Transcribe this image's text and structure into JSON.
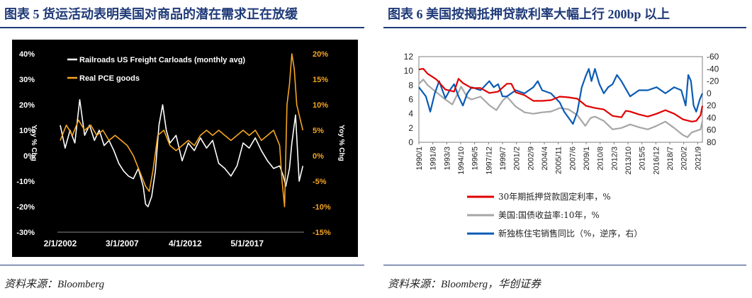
{
  "left": {
    "title": "图表 5   货运活动表明美国对商品的潜在需求正在放缓",
    "source": "资料来源：Bloomberg",
    "chart_data": {
      "type": "line",
      "legend": [
        "Railroads US Freight Carloads (monthly avg)",
        "Real PCE goods"
      ],
      "left_axis": {
        "label": "Yoy % Chg",
        "ticks": [
          "40%",
          "30%",
          "20%",
          "10%",
          "0%",
          "-10%",
          "-20%",
          "-30%"
        ],
        "range": [
          -30,
          40
        ]
      },
      "right_axis": {
        "label": "Yoy % Chg",
        "ticks": [
          "20%",
          "15%",
          "10%",
          "5%",
          "0%",
          "-5%",
          "-10%",
          "-15%"
        ],
        "range": [
          -15,
          20
        ]
      },
      "x_ticks": [
        "2/1/2002",
        "3/1/2007",
        "4/1/2012",
        "5/1/2017"
      ],
      "x_range": [
        2002.0,
        2022.0
      ],
      "series": [
        {
          "name": "Railroads US Freight Carloads (monthly avg)",
          "axis": "left",
          "color": "#ffffff",
          "x": [
            2002.0,
            2002.4,
            2002.8,
            2003.2,
            2003.6,
            2004.0,
            2004.4,
            2004.8,
            2005.2,
            2005.6,
            2006.0,
            2006.4,
            2006.8,
            2007.2,
            2007.6,
            2008.0,
            2008.4,
            2008.8,
            2009.0,
            2009.2,
            2009.5,
            2009.8,
            2010.1,
            2010.4,
            2010.7,
            2011.0,
            2011.5,
            2012.0,
            2012.5,
            2013.0,
            2013.5,
            2014.0,
            2014.5,
            2015.0,
            2015.5,
            2016.0,
            2016.5,
            2017.0,
            2017.5,
            2018.0,
            2018.5,
            2019.0,
            2019.5,
            2020.0,
            2020.3,
            2020.5,
            2020.8,
            2021.0,
            2021.3,
            2021.6,
            2021.9
          ],
          "y": [
            12,
            3,
            10,
            5,
            22,
            8,
            12,
            6,
            10,
            4,
            6,
            2,
            -3,
            -6,
            -8,
            -9,
            -5,
            -12,
            -19,
            -20,
            -16,
            -6,
            12,
            20,
            10,
            5,
            8,
            -2,
            5,
            2,
            7,
            3,
            6,
            -3,
            -5,
            -8,
            -4,
            5,
            3,
            7,
            2,
            -2,
            -5,
            -4,
            -8,
            -12,
            -5,
            5,
            16,
            -10,
            -4
          ]
        },
        {
          "name": "Real PCE goods",
          "axis": "right",
          "color": "#f5a623",
          "x": [
            2002.0,
            2002.5,
            2003.0,
            2003.5,
            2004.0,
            2004.5,
            2005.0,
            2005.5,
            2006.0,
            2006.5,
            2007.0,
            2007.5,
            2008.0,
            2008.5,
            2009.0,
            2009.3,
            2009.6,
            2010.0,
            2010.5,
            2011.0,
            2011.5,
            2012.0,
            2012.5,
            2013.0,
            2013.5,
            2014.0,
            2014.5,
            2015.0,
            2015.5,
            2016.0,
            2016.5,
            2017.0,
            2017.5,
            2018.0,
            2018.5,
            2019.0,
            2019.5,
            2020.0,
            2020.2,
            2020.4,
            2020.6,
            2020.8,
            2021.0,
            2021.2,
            2021.4,
            2021.6,
            2021.9
          ],
          "y": [
            3,
            6,
            4,
            7,
            5,
            6,
            4,
            5,
            3,
            4,
            3,
            2,
            0,
            -3,
            -6,
            -7,
            -3,
            4,
            5,
            2,
            1,
            2,
            3,
            2,
            4,
            5,
            4,
            5,
            4,
            3,
            4,
            5,
            4,
            5,
            3,
            4,
            5,
            2,
            -5,
            -10,
            10,
            14,
            20,
            17,
            10,
            8,
            5
          ]
        }
      ]
    }
  },
  "right": {
    "title": "图表 6   美国按揭抵押贷款利率大幅上行 200bp 以上",
    "source": "资料来源：Bloomberg，华创证券",
    "chart_data": {
      "type": "line",
      "left_axis": {
        "ticks": [
          "12",
          "10",
          "8",
          "6",
          "4",
          "2",
          "0"
        ],
        "range": [
          0,
          12
        ]
      },
      "right_axis": {
        "ticks": [
          "-60",
          "-40",
          "-20",
          "0",
          "20",
          "40",
          "60",
          "80"
        ],
        "range": [
          -60,
          80
        ],
        "inverted": true
      },
      "x_ticks": [
        "1990/1",
        "1991/8",
        "1993/3",
        "1994/10",
        "1996/5",
        "1997/12",
        "1999/7",
        "2001/2",
        "2002/9",
        "2004/4",
        "2005/11",
        "2007/6",
        "2009/1",
        "2010/8",
        "2012/3",
        "2013/10",
        "2015/5",
        "2016/12",
        "2018/7",
        "2020/2",
        "2021/9"
      ],
      "x_range": [
        1990.0,
        2022.2
      ],
      "legend": [
        "30年期抵押贷款固定利率，%",
        "美国:国债收益率:10年，%",
        "新独栋住宅销售同比（%，逆序，右）"
      ],
      "series": [
        {
          "name": "30年期抵押贷款固定利率，%",
          "axis": "left",
          "color": "#e00000",
          "x": [
            1990.0,
            1990.5,
            1991.0,
            1991.5,
            1992.0,
            1993.0,
            1994.0,
            1994.5,
            1995.0,
            1996.0,
            1997.0,
            1998.0,
            1999.0,
            2000.0,
            2000.5,
            2001.0,
            2002.0,
            2003.0,
            2004.0,
            2005.0,
            2006.0,
            2007.0,
            2008.0,
            2009.0,
            2010.0,
            2011.0,
            2012.0,
            2013.0,
            2013.5,
            2014.0,
            2015.0,
            2016.0,
            2017.0,
            2018.0,
            2019.0,
            2020.0,
            2021.0,
            2021.5,
            2022.0,
            2022.2
          ],
          "y": [
            10.2,
            10.3,
            9.6,
            9.2,
            8.8,
            7.4,
            7.1,
            8.9,
            8.3,
            7.6,
            7.6,
            6.9,
            7.1,
            8.2,
            8.2,
            7.0,
            6.6,
            5.8,
            5.8,
            5.9,
            6.4,
            6.3,
            6.1,
            5.1,
            4.8,
            4.6,
            3.7,
            3.5,
            4.4,
            4.3,
            3.9,
            3.6,
            4.0,
            4.5,
            4.0,
            3.2,
            2.9,
            3.0,
            3.8,
            5.1
          ]
        },
        {
          "name": "美国:国债收益率:10年，%",
          "axis": "left",
          "color": "#a6a6a6",
          "x": [
            1990.0,
            1990.5,
            1991.0,
            1992.0,
            1993.0,
            1993.8,
            1994.8,
            1995.5,
            1996.0,
            1997.0,
            1998.0,
            1998.8,
            1999.5,
            2000.0,
            2001.0,
            2002.0,
            2003.0,
            2004.0,
            2005.0,
            2006.0,
            2007.0,
            2008.0,
            2008.9,
            2009.5,
            2010.0,
            2011.0,
            2012.0,
            2013.0,
            2014.0,
            2015.0,
            2016.0,
            2017.0,
            2018.0,
            2019.0,
            2020.0,
            2020.5,
            2021.0,
            2022.0,
            2022.2
          ],
          "y": [
            8.2,
            8.8,
            8.0,
            7.0,
            6.0,
            5.3,
            7.8,
            6.3,
            6.0,
            6.4,
            5.2,
            4.5,
            5.8,
            6.4,
            5.0,
            4.2,
            4.0,
            4.2,
            4.3,
            4.8,
            4.6,
            3.8,
            2.3,
            3.4,
            3.6,
            3.0,
            1.8,
            2.0,
            2.5,
            2.1,
            1.8,
            2.3,
            2.9,
            2.0,
            1.0,
            0.7,
            1.4,
            1.8,
            3.0
          ]
        },
        {
          "name": "新独栋住宅销售同比（%，逆序，右）",
          "axis": "right",
          "color": "#0b5bb5",
          "x": [
            1990.0,
            1990.8,
            1991.3,
            1991.8,
            1992.3,
            1993.0,
            1993.5,
            1994.0,
            1994.5,
            1995.0,
            1995.5,
            1996.0,
            1997.0,
            1998.0,
            1998.5,
            1999.0,
            1999.5,
            2000.0,
            2001.0,
            2002.0,
            2003.0,
            2003.5,
            2004.0,
            2005.0,
            2006.0,
            2006.5,
            2007.0,
            2007.5,
            2008.0,
            2008.5,
            2009.0,
            2009.3,
            2009.6,
            2010.0,
            2010.5,
            2011.0,
            2011.5,
            2012.0,
            2012.5,
            2013.0,
            2014.0,
            2015.0,
            2016.0,
            2017.0,
            2018.0,
            2019.0,
            2019.8,
            2020.3,
            2020.6,
            2020.9,
            2021.2,
            2021.5,
            2021.9,
            2022.2
          ],
          "y": [
            -10,
            5,
            30,
            0,
            -20,
            8,
            -5,
            -15,
            5,
            20,
            0,
            -10,
            -5,
            -20,
            -10,
            -15,
            5,
            5,
            -5,
            0,
            -10,
            -20,
            -5,
            0,
            15,
            30,
            40,
            50,
            30,
            -10,
            -30,
            -40,
            -20,
            -40,
            -15,
            0,
            -10,
            -15,
            -30,
            -20,
            5,
            -5,
            -5,
            -10,
            0,
            -10,
            -5,
            20,
            -30,
            -20,
            20,
            30,
            10,
            0
          ]
        }
      ]
    }
  }
}
